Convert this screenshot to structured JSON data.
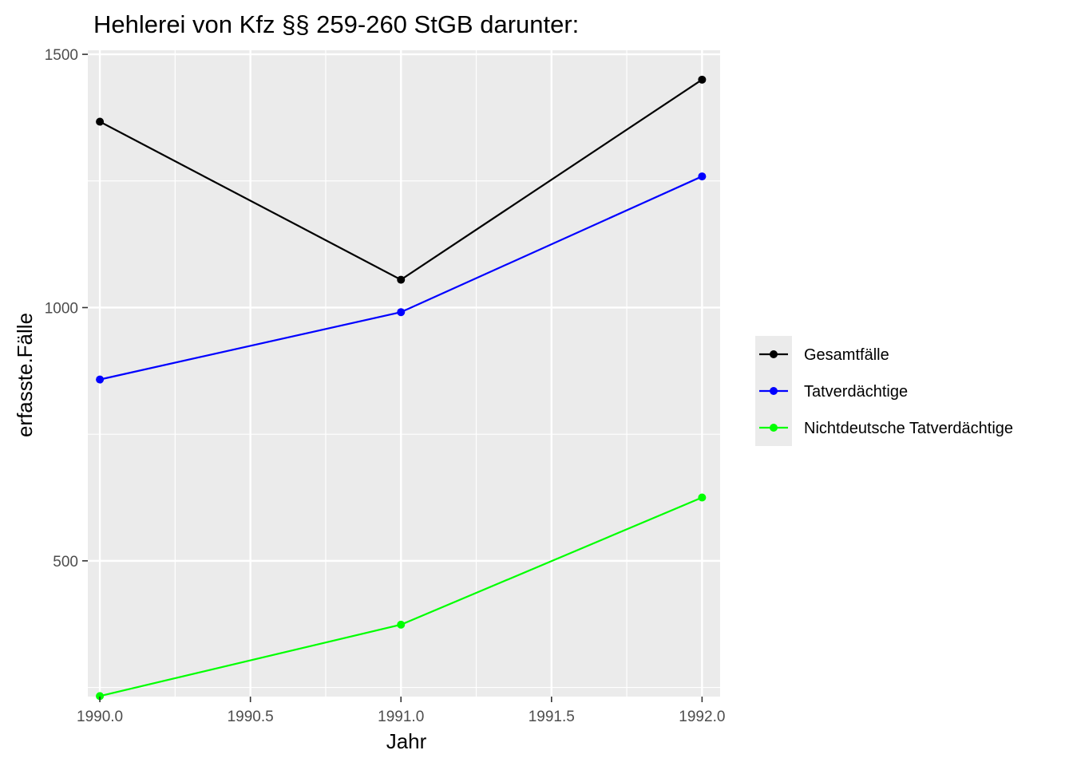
{
  "chart_data": {
    "type": "line",
    "title": "Hehlerei von Kfz §§ 259-260 StGB darunter:",
    "xlabel": "Jahr",
    "ylabel": "erfasste.Fälle",
    "x": [
      1990,
      1991,
      1992
    ],
    "xlim": [
      1989.96,
      1992.06
    ],
    "ylim": [
      232,
      1508
    ],
    "x_ticks": [
      1990.0,
      1990.5,
      1991.0,
      1991.5,
      1992.0
    ],
    "x_tick_labels": [
      "1990.0",
      "1990.5",
      "1991.0",
      "1991.5",
      "1992.0"
    ],
    "y_ticks": [
      500,
      1000,
      1500
    ],
    "y_tick_labels": [
      "500",
      "1000",
      "1500"
    ],
    "y_minor": [
      250,
      750,
      1250
    ],
    "grid": true,
    "legend_position": "right",
    "series": [
      {
        "name": "Gesamtfälle",
        "color": "#000000",
        "values": [
          1367,
          1055,
          1450
        ]
      },
      {
        "name": "Tatverdächtige",
        "color": "#0000ff",
        "values": [
          858,
          991,
          1259
        ]
      },
      {
        "name": "Nichtdeutsche Tatverdächtige",
        "color": "#00ff00",
        "values": [
          233,
          374,
          625
        ]
      }
    ]
  }
}
